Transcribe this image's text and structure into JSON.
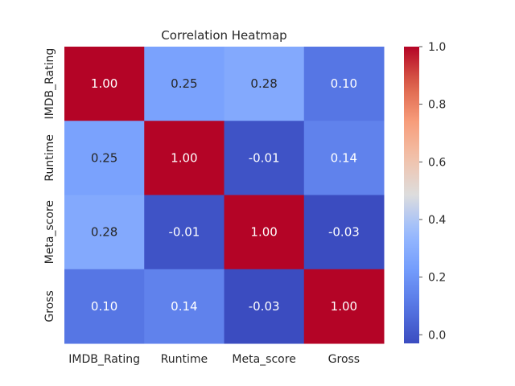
{
  "chart_data": {
    "type": "heatmap",
    "title": "Correlation Heatmap",
    "x_labels": [
      "IMDB_Rating",
      "Runtime",
      "Meta_score",
      "Gross"
    ],
    "y_labels": [
      "IMDB_Rating",
      "Runtime",
      "Meta_score",
      "Gross"
    ],
    "values": [
      [
        1.0,
        0.25,
        0.28,
        0.1
      ],
      [
        0.25,
        1.0,
        -0.01,
        0.14
      ],
      [
        0.28,
        -0.01,
        1.0,
        -0.03
      ],
      [
        0.1,
        0.14,
        -0.03,
        1.0
      ]
    ],
    "annotations": [
      [
        "1.00",
        "0.25",
        "0.28",
        "0.10"
      ],
      [
        "0.25",
        "1.00",
        "-0.01",
        "0.14"
      ],
      [
        "0.28",
        "-0.01",
        "1.00",
        "-0.03"
      ],
      [
        "0.10",
        "0.14",
        "-0.03",
        "1.00"
      ]
    ],
    "colormap": "coolwarm",
    "vmin": -0.03,
    "vmax": 1.0,
    "colorbar": {
      "ticks": [
        0.0,
        0.2,
        0.4,
        0.6,
        0.8,
        1.0
      ],
      "tick_labels": [
        "0.0",
        "0.2",
        "0.4",
        "0.6",
        "0.8",
        "1.0"
      ]
    },
    "grid": false
  }
}
